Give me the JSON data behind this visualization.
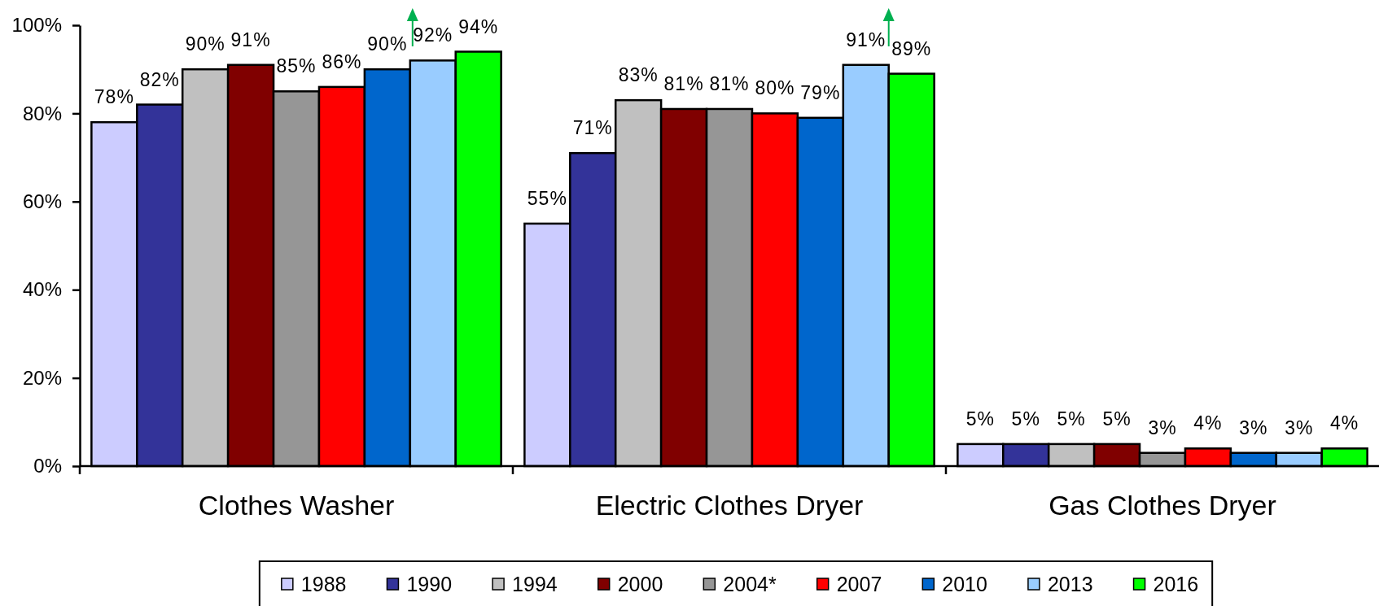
{
  "chart_data": {
    "type": "bar",
    "categories": [
      "Clothes Washer",
      "Electric Clothes Dryer",
      "Gas Clothes Dryer"
    ],
    "series": [
      {
        "name": "1988",
        "color": "#ccccff",
        "values": [
          78,
          55,
          5
        ],
        "value_labels": [
          "78%",
          "55%",
          "5%"
        ]
      },
      {
        "name": "1990",
        "color": "#333399",
        "values": [
          82,
          71,
          5
        ],
        "value_labels": [
          "82%",
          "71%",
          "5%"
        ]
      },
      {
        "name": "1994",
        "color": "#c0c0c0",
        "values": [
          90,
          83,
          5
        ],
        "value_labels": [
          "90%",
          "83%",
          "5%"
        ]
      },
      {
        "name": "2000",
        "color": "#800000",
        "values": [
          91,
          81,
          5
        ],
        "value_labels": [
          "91%",
          "81%",
          "5%"
        ]
      },
      {
        "name": "2004*",
        "color": "#969696",
        "values": [
          85,
          81,
          3
        ],
        "value_labels": [
          "85%",
          "81%",
          "3%"
        ]
      },
      {
        "name": "2007",
        "color": "#ff0000",
        "values": [
          86,
          80,
          4
        ],
        "value_labels": [
          "86%",
          "80%",
          "4%"
        ]
      },
      {
        "name": "2010",
        "color": "#0066cc",
        "values": [
          90,
          79,
          3
        ],
        "value_labels": [
          "90%",
          "79%",
          "3%"
        ]
      },
      {
        "name": "2013",
        "color": "#99ccff",
        "values": [
          92,
          91,
          3
        ],
        "value_labels": [
          "92%",
          "91%",
          "3%"
        ]
      },
      {
        "name": "2016",
        "color": "#00ff00",
        "values": [
          94,
          89,
          4
        ],
        "value_labels": [
          "94%",
          "89%",
          "4%"
        ]
      }
    ],
    "ylim": [
      0,
      100
    ],
    "yticks": [
      {
        "value": 0,
        "label": "0%"
      },
      {
        "value": 20,
        "label": "20%"
      },
      {
        "value": 40,
        "label": "40%"
      },
      {
        "value": 60,
        "label": "60%"
      },
      {
        "value": 80,
        "label": "80%"
      },
      {
        "value": 100,
        "label": "100%"
      }
    ],
    "legend": "bottom"
  }
}
